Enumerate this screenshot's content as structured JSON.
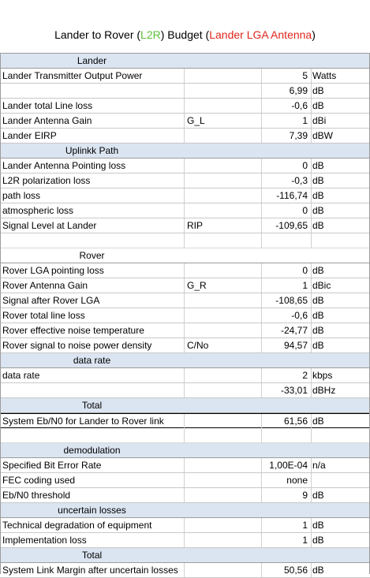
{
  "title": {
    "prefix": "Lander to Rover (",
    "code": "L2R",
    "middle": ") Budget (",
    "antenna": "Lander LGA Antenna",
    "suffix": ")"
  },
  "rows": [
    {
      "kind": "section",
      "label": "Lander"
    },
    {
      "kind": "item",
      "label": "Lander Transmitter Output Power",
      "sym": "",
      "value": "5",
      "unit": "Watts"
    },
    {
      "kind": "item",
      "label": "",
      "sym": "",
      "value": "6,99",
      "unit": "dB"
    },
    {
      "kind": "item",
      "label": "Lander total Line loss",
      "sym": "",
      "value": "-0,6",
      "unit": "dB"
    },
    {
      "kind": "item",
      "label": "Lander Antenna Gain",
      "sym": "G_L",
      "value": "1",
      "unit": "dBi"
    },
    {
      "kind": "item",
      "label": "Lander EIRP",
      "sym": "",
      "value": "7,39",
      "unit": "dBW"
    },
    {
      "kind": "section",
      "label": "Uplinkk Path"
    },
    {
      "kind": "item",
      "label": "Lander Antenna Pointing loss",
      "sym": "",
      "value": "0",
      "unit": "dB"
    },
    {
      "kind": "item",
      "label": "L2R polarization loss",
      "sym": "",
      "value": "-0,3",
      "unit": "dB"
    },
    {
      "kind": "item",
      "label": "path loss",
      "sym": "",
      "value": "-116,74",
      "unit": "dB"
    },
    {
      "kind": "item",
      "label": "atmospheric loss",
      "sym": "",
      "value": "0",
      "unit": "dB"
    },
    {
      "kind": "item",
      "label": "Signal Level at Lander",
      "sym": "RIP",
      "value": "-109,65",
      "unit": "dB"
    },
    {
      "kind": "blank"
    },
    {
      "kind": "section-plain",
      "label": "Rover"
    },
    {
      "kind": "item",
      "label": "Rover LGA pointing loss",
      "sym": "",
      "value": "0",
      "unit": "dB"
    },
    {
      "kind": "item",
      "label": "Rover Antenna Gain",
      "sym": "G_R",
      "value": "1",
      "unit": "dBic"
    },
    {
      "kind": "item",
      "label": "Signal after Rover LGA",
      "sym": "",
      "value": "-108,65",
      "unit": "dB"
    },
    {
      "kind": "item",
      "label": "Rover total line loss",
      "sym": "",
      "value": "-0,6",
      "unit": "dB"
    },
    {
      "kind": "item",
      "label": "Rover effective noise temperature",
      "sym": "",
      "value": "-24,77",
      "unit": "dB"
    },
    {
      "kind": "item",
      "label": "Rover signal to noise power density",
      "sym": "C/No",
      "value": "94,57",
      "unit": "dB"
    },
    {
      "kind": "section",
      "label": "data rate"
    },
    {
      "kind": "item",
      "label": "data rate",
      "sym": "",
      "value": "2",
      "unit": "kbps"
    },
    {
      "kind": "item",
      "label": "",
      "sym": "",
      "value": "-33,01",
      "unit": "dBHz"
    },
    {
      "kind": "section",
      "label": "Total"
    },
    {
      "kind": "total",
      "label": "System Eb/N0 for Lander to Rover link",
      "sym": "",
      "value": "61,56",
      "unit": "dB"
    },
    {
      "kind": "blank"
    },
    {
      "kind": "section",
      "label": "demodulation"
    },
    {
      "kind": "item",
      "label": "Specified Bit Error Rate",
      "sym": "",
      "value": "1,00E-04",
      "unit": "n/a"
    },
    {
      "kind": "item",
      "label": "FEC coding used",
      "sym": "",
      "value": "none",
      "unit": ""
    },
    {
      "kind": "item",
      "label": "Eb/N0 threshold",
      "sym": "",
      "value": "9",
      "unit": "dB"
    },
    {
      "kind": "section",
      "label": "uncertain losses"
    },
    {
      "kind": "item",
      "label": "Technical degradation of equipment",
      "sym": "",
      "value": "1",
      "unit": "dB"
    },
    {
      "kind": "item",
      "label": "Implementation loss",
      "sym": "",
      "value": "1",
      "unit": "dB"
    },
    {
      "kind": "section",
      "label": "Total"
    },
    {
      "kind": "item",
      "label": "System Link Margin after uncertain losses",
      "sym": "",
      "value": "50,56",
      "unit": "dB"
    }
  ]
}
